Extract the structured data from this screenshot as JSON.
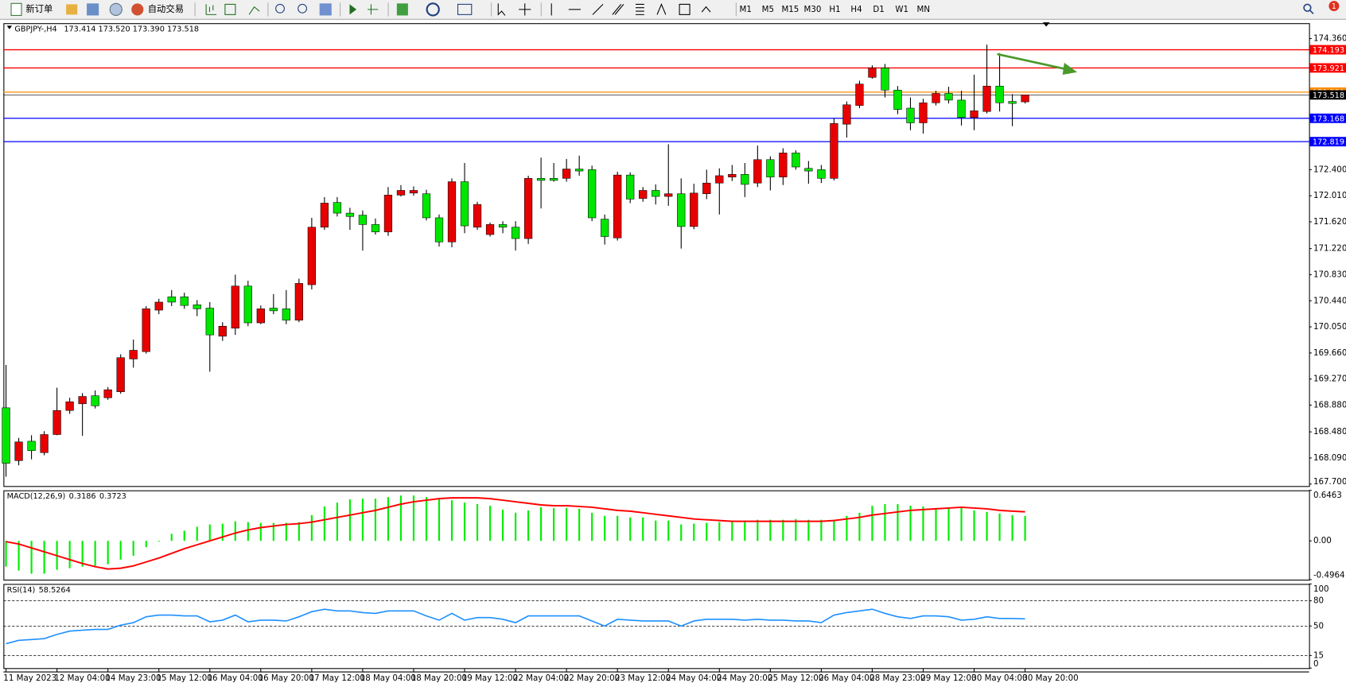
{
  "toolbar": {
    "new_order": "新订单",
    "auto_trading": "自动交易",
    "timeframes": [
      "M1",
      "M5",
      "M15",
      "M30",
      "H1",
      "H4",
      "D1",
      "W1",
      "MN"
    ],
    "notifications": "1"
  },
  "chart_data": [
    {
      "type": "candlestick",
      "title": "GBPJPY-,H4",
      "ohlc_text": "173.414 173.520 173.390 173.518",
      "categories": [
        "11 May 2023",
        null,
        null,
        null,
        "12 May 04:00",
        null,
        null,
        null,
        "14 May 23:00",
        null,
        null,
        null,
        "15 May 12:00",
        null,
        null,
        null,
        "16 May 04:00",
        null,
        null,
        null,
        "16 May 20:00",
        null,
        null,
        null,
        "17 May 12:00",
        null,
        null,
        null,
        "18 May 04:00",
        null,
        null,
        null,
        "18 May 20:00",
        null,
        null,
        null,
        "19 May 12:00",
        null,
        null,
        null,
        "22 May 04:00",
        null,
        null,
        null,
        "22 May 20:00",
        null,
        null,
        null,
        "23 May 12:00",
        null,
        null,
        null,
        "24 May 04:00",
        null,
        null,
        null,
        "24 May 20:00",
        null,
        null,
        null,
        "25 May 12:00",
        null,
        null,
        null,
        "26 May 04:00",
        null,
        null,
        null,
        "28 May 23:00",
        null,
        null,
        null,
        "29 May 12:00",
        null,
        null,
        null,
        "30 May 04:00",
        null,
        null,
        null,
        "30 May 20:00"
      ],
      "open": [
        168.84,
        168.05,
        168.34,
        168.17,
        168.44,
        168.8,
        168.9,
        169.02,
        168.99,
        169.08,
        169.57,
        169.68,
        170.3,
        170.5,
        170.5,
        170.38,
        170.33,
        169.91,
        170.03,
        170.66,
        170.11,
        170.33,
        170.32,
        170.15,
        170.68,
        171.54,
        171.91,
        171.75,
        171.72,
        171.58,
        171.47,
        172.02,
        172.05,
        172.04,
        171.68,
        171.32,
        172.22,
        171.54,
        171.43,
        171.58,
        171.54,
        171.37,
        172.27,
        172.27,
        172.27,
        172.41,
        172.4,
        171.66,
        171.38,
        172.32,
        171.97,
        172.09,
        172.0,
        172.04,
        171.55,
        172.04,
        172.2,
        172.29,
        172.33,
        172.2,
        172.55,
        172.29,
        172.65,
        172.42,
        172.4,
        172.27,
        173.08,
        173.36,
        173.78,
        173.92,
        173.59,
        173.32,
        173.1,
        173.4,
        173.54,
        173.44,
        173.18,
        173.27,
        173.65,
        173.42,
        173.414
      ],
      "high": [
        169.48,
        168.39,
        168.43,
        168.49,
        169.14,
        168.99,
        169.06,
        169.1,
        169.15,
        169.64,
        169.86,
        170.36,
        170.47,
        170.6,
        170.56,
        170.45,
        170.42,
        170.12,
        170.83,
        170.74,
        170.37,
        170.54,
        170.6,
        170.77,
        171.68,
        171.99,
        171.99,
        171.83,
        171.79,
        171.67,
        172.14,
        172.17,
        172.15,
        172.1,
        171.73,
        172.27,
        172.5,
        171.92,
        171.61,
        171.63,
        171.63,
        172.31,
        172.58,
        172.5,
        172.56,
        172.61,
        172.46,
        171.73,
        172.37,
        172.36,
        172.14,
        172.18,
        172.78,
        172.27,
        172.19,
        172.4,
        172.42,
        172.47,
        172.5,
        172.76,
        172.6,
        172.72,
        172.69,
        172.53,
        172.47,
        173.17,
        173.42,
        173.73,
        173.96,
        173.98,
        173.65,
        173.48,
        173.46,
        173.58,
        173.64,
        173.58,
        173.82,
        174.27,
        174.14,
        173.53,
        173.52
      ],
      "low": [
        167.81,
        167.98,
        168.07,
        168.13,
        168.43,
        168.75,
        168.42,
        168.83,
        168.96,
        169.05,
        169.44,
        169.65,
        170.24,
        170.36,
        170.32,
        170.21,
        169.38,
        169.84,
        169.93,
        170.06,
        170.09,
        170.24,
        170.09,
        170.12,
        170.61,
        171.5,
        171.7,
        171.5,
        171.19,
        171.43,
        171.41,
        172.0,
        172.01,
        171.64,
        171.25,
        171.24,
        171.45,
        171.5,
        171.4,
        171.45,
        171.19,
        171.29,
        171.82,
        172.22,
        172.22,
        172.31,
        171.63,
        171.28,
        171.34,
        171.9,
        171.92,
        171.88,
        171.86,
        171.22,
        171.51,
        171.96,
        171.73,
        172.23,
        171.99,
        172.14,
        172.09,
        172.17,
        172.4,
        172.19,
        172.2,
        172.24,
        172.88,
        173.32,
        173.76,
        173.48,
        173.23,
        172.99,
        172.94,
        173.36,
        173.39,
        173.06,
        172.99,
        173.24,
        173.27,
        173.05,
        173.39
      ],
      "close": [
        168.01,
        168.33,
        168.2,
        168.44,
        168.8,
        168.93,
        169.01,
        168.87,
        169.11,
        169.59,
        169.7,
        170.32,
        170.42,
        170.42,
        170.37,
        170.32,
        169.93,
        170.06,
        170.66,
        170.11,
        170.32,
        170.29,
        170.15,
        170.7,
        171.54,
        171.9,
        171.75,
        171.7,
        171.58,
        171.47,
        172.02,
        172.09,
        172.09,
        171.68,
        171.32,
        172.22,
        171.56,
        171.88,
        171.58,
        171.54,
        171.37,
        172.27,
        172.24,
        172.24,
        172.41,
        172.38,
        171.68,
        171.4,
        172.32,
        171.96,
        172.09,
        172.0,
        172.04,
        171.55,
        172.05,
        172.2,
        172.31,
        172.33,
        172.18,
        172.55,
        172.29,
        172.65,
        172.44,
        172.38,
        172.27,
        173.09,
        173.37,
        173.68,
        173.92,
        173.59,
        173.3,
        173.1,
        173.4,
        173.54,
        173.44,
        173.18,
        173.28,
        173.65,
        173.4,
        173.39,
        173.518
      ],
      "up_color": "#e60000",
      "down_color": "#00e600",
      "ylim": [
        167.67,
        174.59
      ],
      "yticks": [
        {
          "value": 174.36,
          "label": "174.360"
        },
        {
          "value": 172.4,
          "label": "172.400"
        },
        {
          "value": 172.01,
          "label": "172.010"
        },
        {
          "value": 171.62,
          "label": "171.620"
        },
        {
          "value": 171.22,
          "label": "171.220"
        },
        {
          "value": 170.83,
          "label": "170.830"
        },
        {
          "value": 170.44,
          "label": "170.440"
        },
        {
          "value": 170.05,
          "label": "170.050"
        },
        {
          "value": 169.66,
          "label": "169.660"
        },
        {
          "value": 169.27,
          "label": "169.270"
        },
        {
          "value": 168.88,
          "label": "168.880"
        },
        {
          "value": 168.48,
          "label": "168.480"
        },
        {
          "value": 168.09,
          "label": "168.090"
        },
        {
          "value": 167.7,
          "label": "167.700"
        }
      ],
      "levels": [
        {
          "value": 174.193,
          "color": "#ff0000"
        },
        {
          "value": 173.921,
          "color": "#ff0000"
        },
        {
          "value": 173.559,
          "color": "#ff8c00"
        },
        {
          "value": 173.518,
          "color": "#000000"
        },
        {
          "value": 173.168,
          "color": "#0000ff"
        },
        {
          "value": 172.819,
          "color": "#0000ff"
        }
      ]
    },
    {
      "type": "macd",
      "title": "MACD(12,26,9)",
      "histogram": {
        "color": "#00ee00",
        "values": [
          -0.33,
          -0.38,
          -0.42,
          -0.42,
          -0.37,
          -0.35,
          -0.33,
          -0.32,
          -0.3,
          -0.24,
          -0.19,
          -0.08,
          -0.01,
          0.09,
          0.13,
          0.18,
          0.21,
          0.22,
          0.25,
          0.24,
          0.23,
          0.23,
          0.23,
          0.24,
          0.33,
          0.44,
          0.49,
          0.53,
          0.54,
          0.54,
          0.56,
          0.58,
          0.58,
          0.56,
          0.54,
          0.52,
          0.49,
          0.47,
          0.45,
          0.4,
          0.36,
          0.39,
          0.43,
          0.42,
          0.42,
          0.41,
          0.36,
          0.32,
          0.32,
          0.3,
          0.3,
          0.26,
          0.26,
          0.21,
          0.22,
          0.23,
          0.24,
          0.25,
          0.26,
          0.27,
          0.27,
          0.27,
          0.28,
          0.27,
          0.27,
          0.27,
          0.32,
          0.36,
          0.45,
          0.47,
          0.47,
          0.45,
          0.44,
          0.42,
          0.43,
          0.42,
          0.39,
          0.37,
          0.35,
          0.33,
          0.3186
        ]
      },
      "signal": {
        "color": "#ff0000",
        "values": [
          -0.01,
          -0.04,
          -0.09,
          -0.14,
          -0.19,
          -0.24,
          -0.29,
          -0.33,
          -0.36,
          -0.35,
          -0.32,
          -0.27,
          -0.22,
          -0.16,
          -0.1,
          -0.05,
          0.0,
          0.05,
          0.1,
          0.14,
          0.17,
          0.19,
          0.21,
          0.22,
          0.24,
          0.27,
          0.3,
          0.33,
          0.36,
          0.39,
          0.43,
          0.47,
          0.5,
          0.52,
          0.54,
          0.55,
          0.55,
          0.55,
          0.54,
          0.52,
          0.5,
          0.48,
          0.46,
          0.45,
          0.45,
          0.44,
          0.43,
          0.41,
          0.39,
          0.38,
          0.36,
          0.34,
          0.32,
          0.3,
          0.28,
          0.27,
          0.26,
          0.25,
          0.25,
          0.25,
          0.25,
          0.25,
          0.25,
          0.25,
          0.25,
          0.26,
          0.28,
          0.3,
          0.33,
          0.35,
          0.37,
          0.39,
          0.4,
          0.41,
          0.42,
          0.43,
          0.42,
          0.41,
          0.39,
          0.38,
          0.3723
        ]
      },
      "ylim": [
        -0.4964,
        0.6463
      ],
      "yticks": [
        0.6463,
        {
          "value": 0,
          "label": "0.00"
        },
        -0.4964
      ]
    },
    {
      "type": "line",
      "title": "RSI(14)",
      "color": "#1e90ff",
      "values": [
        29,
        33,
        34,
        35,
        40,
        44,
        45,
        46,
        46,
        51,
        54,
        61,
        63,
        63,
        62,
        62,
        55,
        57,
        63,
        55,
        57,
        57,
        56,
        61,
        67,
        70,
        68,
        68,
        66,
        65,
        68,
        68,
        68,
        62,
        57,
        65,
        57,
        60,
        60,
        58,
        54,
        62,
        62,
        62,
        62,
        62,
        56,
        50,
        58,
        57,
        56,
        56,
        56,
        50,
        56,
        58,
        58,
        58,
        57,
        58,
        57,
        57,
        56,
        56,
        54,
        63,
        66,
        68,
        70,
        65,
        61,
        59,
        62,
        62,
        61,
        57,
        58,
        61,
        59,
        59,
        58.5264
      ],
      "ylim": [
        0,
        100
      ],
      "yticks": [
        100,
        80,
        50,
        15,
        0
      ]
    }
  ]
}
